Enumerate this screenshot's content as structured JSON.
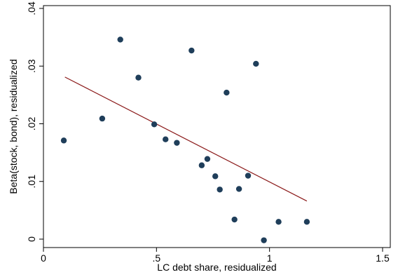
{
  "chart_data": {
    "type": "scatter",
    "xlabel": "LC debt share, residualized",
    "ylabel": "Beta(stock, bond), residualized",
    "xlim": [
      0,
      1.5
    ],
    "ylim": [
      0,
      0.04
    ],
    "xticks": [
      {
        "value": 0,
        "label": "0"
      },
      {
        "value": 0.5,
        "label": ".5"
      },
      {
        "value": 1,
        "label": "1"
      },
      {
        "value": 1.5,
        "label": "1.5"
      }
    ],
    "yticks": [
      {
        "value": 0,
        "label": "0"
      },
      {
        "value": 0.01,
        "label": ".01"
      },
      {
        "value": 0.02,
        "label": ".02"
      },
      {
        "value": 0.03,
        "label": ".03"
      },
      {
        "value": 0.04,
        "label": ".04"
      }
    ],
    "grid": false,
    "points": [
      {
        "x": 0.09,
        "y": 0.0171
      },
      {
        "x": 0.26,
        "y": 0.0209
      },
      {
        "x": 0.34,
        "y": 0.0346
      },
      {
        "x": 0.42,
        "y": 0.028
      },
      {
        "x": 0.49,
        "y": 0.0199
      },
      {
        "x": 0.54,
        "y": 0.0173
      },
      {
        "x": 0.59,
        "y": 0.0167
      },
      {
        "x": 0.655,
        "y": 0.0327
      },
      {
        "x": 0.7,
        "y": 0.0128
      },
      {
        "x": 0.725,
        "y": 0.0139
      },
      {
        "x": 0.76,
        "y": 0.0109
      },
      {
        "x": 0.78,
        "y": 0.0086
      },
      {
        "x": 0.81,
        "y": 0.0254
      },
      {
        "x": 0.845,
        "y": 0.0034
      },
      {
        "x": 0.865,
        "y": 0.0087
      },
      {
        "x": 0.905,
        "y": 0.011
      },
      {
        "x": 0.94,
        "y": 0.0304
      },
      {
        "x": 0.975,
        "y": -0.0002
      },
      {
        "x": 1.04,
        "y": 0.003
      },
      {
        "x": 1.165,
        "y": 0.003
      }
    ],
    "fit_line": {
      "x": [
        0.095,
        1.165
      ],
      "y": [
        0.0281,
        0.0066
      ]
    },
    "colors": {
      "point": "#1f3e5a",
      "fit_line": "#8b1a1a",
      "axis": "#000000",
      "frame": "#000000"
    }
  }
}
